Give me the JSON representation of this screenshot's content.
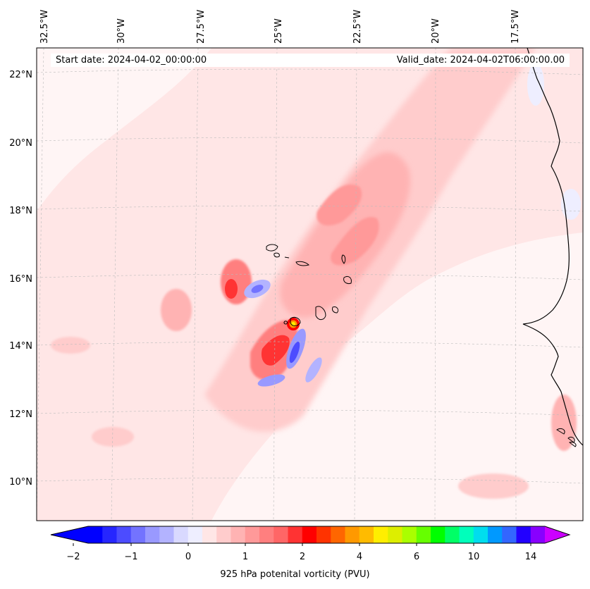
{
  "map": {
    "start_label": "Start date: 2024-04-02_00:00:00",
    "valid_label": "Valid_date: 2024-04-02T06:00:00.00",
    "lon_labels": [
      "32.5°W",
      "30°W",
      "27.5°W",
      "25°W",
      "22.5°W",
      "20°W",
      "17.5°W"
    ],
    "lat_labels": [
      "22°N",
      "20°N",
      "18°N",
      "16°N",
      "14°N",
      "12°N",
      "10°N"
    ],
    "features": [
      "coastline-west-africa",
      "cape-verde-islands",
      "pv-anomaly-field"
    ]
  },
  "colorbar": {
    "label": "925 hPa potenital vorticity (PVU)",
    "ticks": [
      "−2",
      "−1",
      "0",
      "1",
      "2",
      "4",
      "6",
      "10",
      "14"
    ],
    "colors": [
      "#0000ff",
      "#2626ff",
      "#4c4cff",
      "#7373ff",
      "#9999ff",
      "#b3b3ff",
      "#d9d9ff",
      "#eeeeff",
      "#ffe6e6",
      "#ffcccc",
      "#ffb3b3",
      "#ff9999",
      "#ff7f7f",
      "#ff6666",
      "#ff3333",
      "#ff0000",
      "#ff3300",
      "#ff6600",
      "#ff9900",
      "#ffbb00",
      "#ffee00",
      "#ddee00",
      "#aaff00",
      "#66ff00",
      "#00ff00",
      "#00ff66",
      "#00ffbb",
      "#00ddee",
      "#0099ff",
      "#3366ff",
      "#2200ff",
      "#8800ff"
    ],
    "extend_low": "#0000ff",
    "extend_high": "#cc00ff"
  }
}
